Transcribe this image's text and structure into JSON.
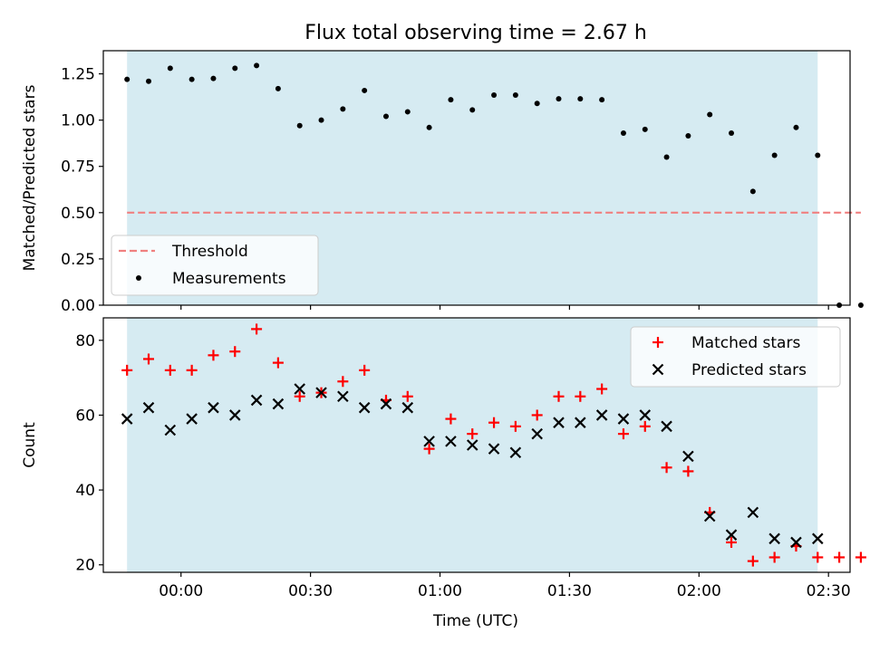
{
  "figure": {
    "title": "Flux total observing time = 2.67 h",
    "xlabel": "Time (UTC)"
  },
  "colors": {
    "span": "#add8e6",
    "threshold": "#f08080",
    "measurements": "#000000",
    "matched": "#ff0000",
    "predicted": "#000000"
  },
  "chart_data": [
    {
      "type": "scatter",
      "ylabel": "Matched/Predicted stars",
      "xlim": [
        -18,
        155
      ],
      "ylim": [
        0,
        1.375
      ],
      "xticks": [
        0,
        30,
        60,
        90,
        120,
        150
      ],
      "yticks": [
        0.0,
        0.25,
        0.5,
        0.75,
        1.0,
        1.25
      ],
      "ytick_labels": [
        "0.00",
        "0.25",
        "0.50",
        "0.75",
        "1.00",
        "1.25"
      ],
      "shaded_interval": [
        -12.5,
        147.5
      ],
      "threshold": {
        "name": "Threshold",
        "y": 0.5,
        "x_range": [
          -12.5,
          157.5
        ]
      },
      "legend": {
        "placement": "lower-left",
        "entries": [
          "Threshold",
          "Measurements"
        ]
      },
      "series": [
        {
          "name": "Measurements",
          "x": [
            -12.5,
            -7.5,
            -2.5,
            2.5,
            7.5,
            12.5,
            17.5,
            22.5,
            27.5,
            32.5,
            37.5,
            42.5,
            47.5,
            52.5,
            57.5,
            62.5,
            67.5,
            72.5,
            77.5,
            82.5,
            87.5,
            92.5,
            97.5,
            102.5,
            107.5,
            112.5,
            117.5,
            122.5,
            127.5,
            132.5,
            137.5,
            142.5,
            147.5,
            152.5,
            157.5
          ],
          "y": [
            1.22,
            1.21,
            1.28,
            1.22,
            1.225,
            1.28,
            1.295,
            1.17,
            0.97,
            1.0,
            1.06,
            1.16,
            1.02,
            1.045,
            0.96,
            1.11,
            1.055,
            1.135,
            1.135,
            1.09,
            1.115,
            1.115,
            1.11,
            0.93,
            0.95,
            0.8,
            0.915,
            1.03,
            0.93,
            0.615,
            0.81,
            0.96,
            0.81,
            0.0,
            0.0
          ]
        }
      ]
    },
    {
      "type": "scatter",
      "ylabel": "Count",
      "xlim": [
        -18,
        155
      ],
      "ylim": [
        18,
        86
      ],
      "xticks": [
        0,
        30,
        60,
        90,
        120,
        150
      ],
      "xtick_labels": [
        "00:00",
        "00:30",
        "01:00",
        "01:30",
        "02:00",
        "02:30"
      ],
      "yticks": [
        20,
        40,
        60,
        80
      ],
      "ytick_labels": [
        "20",
        "40",
        "60",
        "80"
      ],
      "shaded_interval": [
        -12.5,
        147.5
      ],
      "legend": {
        "placement": "top-right",
        "entries": [
          "Matched stars",
          "Predicted stars"
        ]
      },
      "series": [
        {
          "name": "Matched stars",
          "marker": "plus",
          "x": [
            -12.5,
            -7.5,
            -2.5,
            2.5,
            7.5,
            12.5,
            17.5,
            22.5,
            27.5,
            32.5,
            37.5,
            42.5,
            47.5,
            52.5,
            57.5,
            62.5,
            67.5,
            72.5,
            77.5,
            82.5,
            87.5,
            92.5,
            97.5,
            102.5,
            107.5,
            112.5,
            117.5,
            122.5,
            127.5,
            132.5,
            137.5,
            142.5,
            147.5,
            152.5,
            157.5
          ],
          "y": [
            72,
            75,
            72,
            72,
            76,
            77,
            83,
            74,
            65,
            66,
            69,
            72,
            64,
            65,
            51,
            59,
            55,
            58,
            57,
            60,
            65,
            65,
            67,
            55,
            57,
            46,
            45,
            34,
            26,
            21,
            22,
            25,
            22,
            22,
            22
          ]
        },
        {
          "name": "Predicted stars",
          "marker": "x",
          "x": [
            -12.5,
            -7.5,
            -2.5,
            2.5,
            7.5,
            12.5,
            17.5,
            22.5,
            27.5,
            32.5,
            37.5,
            42.5,
            47.5,
            52.5,
            57.5,
            62.5,
            67.5,
            72.5,
            77.5,
            82.5,
            87.5,
            92.5,
            97.5,
            102.5,
            107.5,
            112.5,
            117.5,
            122.5,
            127.5,
            132.5,
            137.5,
            142.5,
            147.5
          ],
          "y": [
            59,
            62,
            56,
            59,
            62,
            60,
            64,
            63,
            67,
            66,
            65,
            62,
            63,
            62,
            53,
            53,
            52,
            51,
            50,
            55,
            58,
            58,
            60,
            59,
            60,
            57,
            49,
            33,
            28,
            34,
            27,
            26,
            27
          ]
        }
      ]
    }
  ]
}
